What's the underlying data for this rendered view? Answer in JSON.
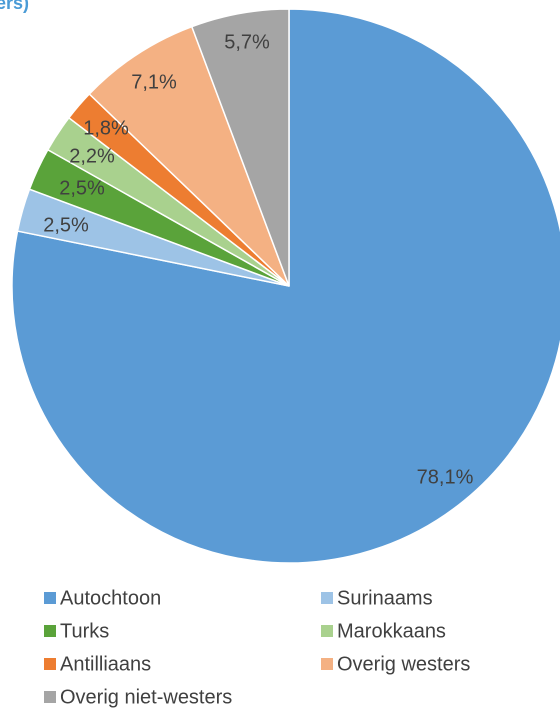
{
  "chart_data": {
    "type": "pie",
    "title": "ers)",
    "categories": [
      "Autochtoon",
      "Surinaams",
      "Turks",
      "Marokkaans",
      "Antilliaans",
      "Overig westers",
      "Overig niet-westers"
    ],
    "values": [
      78.1,
      2.5,
      2.5,
      2.2,
      1.8,
      7.1,
      5.7
    ],
    "value_labels": [
      "78,1%",
      "2,5%",
      "2,5%",
      "2,2%",
      "1,8%",
      "7,1%",
      "5,7%"
    ],
    "colors": [
      "#5b9bd5",
      "#9dc3e6",
      "#5aa33a",
      "#a9d18e",
      "#ed7d31",
      "#f4b183",
      "#a5a5a5"
    ],
    "legend": "bottom"
  }
}
